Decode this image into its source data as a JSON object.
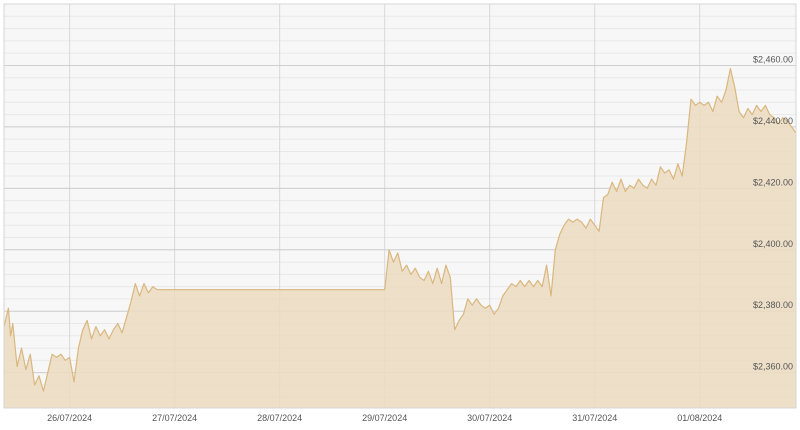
{
  "chart_data": {
    "type": "area",
    "title": "",
    "xlabel": "",
    "ylabel": "",
    "x_ticks": [
      "26/07/2024",
      "27/07/2024",
      "28/07/2024",
      "29/07/2024",
      "30/07/2024",
      "31/07/2024",
      "01/08/2024"
    ],
    "y_ticks": [
      {
        "value": 2360,
        "label": "$2,360.00"
      },
      {
        "value": 2380,
        "label": "$2,380.00"
      },
      {
        "value": 2400,
        "label": "$2,400.00"
      },
      {
        "value": 2420,
        "label": "$2,420.00"
      },
      {
        "value": 2440,
        "label": "$2,440.00"
      },
      {
        "value": 2460,
        "label": "$2,460.00"
      }
    ],
    "xlim": [
      "25/07/2024 09:00",
      "01/08/2024 22:00"
    ],
    "ylim": [
      2348.5,
      2480
    ],
    "y_axis_position": "right",
    "grid": true,
    "series": [
      {
        "color": "#d9b77f",
        "fill": "#ecdcc2",
        "points": [
          [
            "25/07/2024 09:00",
            2375
          ],
          [
            "25/07/2024 10:00",
            2381
          ],
          [
            "25/07/2024 10:30",
            2372
          ],
          [
            "25/07/2024 11:00",
            2376
          ],
          [
            "25/07/2024 12:00",
            2362
          ],
          [
            "25/07/2024 13:00",
            2368
          ],
          [
            "25/07/2024 14:00",
            2361
          ],
          [
            "25/07/2024 15:00",
            2366
          ],
          [
            "25/07/2024 16:00",
            2356
          ],
          [
            "25/07/2024 17:00",
            2359
          ],
          [
            "25/07/2024 18:00",
            2354
          ],
          [
            "25/07/2024 19:00",
            2360
          ],
          [
            "25/07/2024 20:00",
            2366
          ],
          [
            "25/07/2024 21:00",
            2365
          ],
          [
            "25/07/2024 22:00",
            2366
          ],
          [
            "25/07/2024 23:00",
            2364
          ],
          [
            "26/07/2024 00:00",
            2365
          ],
          [
            "26/07/2024 01:00",
            2357
          ],
          [
            "26/07/2024 02:00",
            2368
          ],
          [
            "26/07/2024 03:00",
            2374
          ],
          [
            "26/07/2024 04:00",
            2377
          ],
          [
            "26/07/2024 05:00",
            2371
          ],
          [
            "26/07/2024 06:00",
            2375
          ],
          [
            "26/07/2024 07:00",
            2372
          ],
          [
            "26/07/2024 08:00",
            2374
          ],
          [
            "26/07/2024 09:00",
            2371
          ],
          [
            "26/07/2024 10:00",
            2374
          ],
          [
            "26/07/2024 11:00",
            2376
          ],
          [
            "26/07/2024 12:00",
            2373
          ],
          [
            "26/07/2024 13:00",
            2378
          ],
          [
            "26/07/2024 14:00",
            2383
          ],
          [
            "26/07/2024 15:00",
            2389
          ],
          [
            "26/07/2024 16:00",
            2385
          ],
          [
            "26/07/2024 17:00",
            2389
          ],
          [
            "26/07/2024 18:00",
            2386
          ],
          [
            "26/07/2024 19:00",
            2388
          ],
          [
            "26/07/2024 20:00",
            2387
          ],
          [
            "26/07/2024 21:00",
            2387
          ],
          [
            "29/07/2024 00:00",
            2387
          ],
          [
            "29/07/2024 01:00",
            2400
          ],
          [
            "29/07/2024 02:00",
            2396
          ],
          [
            "29/07/2024 03:00",
            2399
          ],
          [
            "29/07/2024 04:00",
            2393
          ],
          [
            "29/07/2024 05:00",
            2395
          ],
          [
            "29/07/2024 06:00",
            2392
          ],
          [
            "29/07/2024 07:00",
            2394
          ],
          [
            "29/07/2024 08:00",
            2391
          ],
          [
            "29/07/2024 09:00",
            2390
          ],
          [
            "29/07/2024 10:00",
            2393
          ],
          [
            "29/07/2024 11:00",
            2389
          ],
          [
            "29/07/2024 12:00",
            2394
          ],
          [
            "29/07/2024 13:00",
            2389
          ],
          [
            "29/07/2024 14:00",
            2395
          ],
          [
            "29/07/2024 15:00",
            2391
          ],
          [
            "29/07/2024 16:00",
            2374
          ],
          [
            "29/07/2024 17:00",
            2377
          ],
          [
            "29/07/2024 18:00",
            2379
          ],
          [
            "29/07/2024 19:00",
            2384
          ],
          [
            "29/07/2024 20:00",
            2382
          ],
          [
            "29/07/2024 21:00",
            2384
          ],
          [
            "29/07/2024 22:00",
            2382
          ],
          [
            "29/07/2024 23:00",
            2381
          ],
          [
            "30/07/2024 00:00",
            2382
          ],
          [
            "30/07/2024 01:00",
            2379
          ],
          [
            "30/07/2024 02:00",
            2381
          ],
          [
            "30/07/2024 03:00",
            2385
          ],
          [
            "30/07/2024 04:00",
            2387
          ],
          [
            "30/07/2024 05:00",
            2389
          ],
          [
            "30/07/2024 06:00",
            2388
          ],
          [
            "30/07/2024 07:00",
            2390
          ],
          [
            "30/07/2024 08:00",
            2388
          ],
          [
            "30/07/2024 09:00",
            2390
          ],
          [
            "30/07/2024 10:00",
            2388
          ],
          [
            "30/07/2024 11:00",
            2390
          ],
          [
            "30/07/2024 12:00",
            2388
          ],
          [
            "30/07/2024 13:00",
            2395
          ],
          [
            "30/07/2024 14:00",
            2385
          ],
          [
            "30/07/2024 15:00",
            2400
          ],
          [
            "30/07/2024 16:00",
            2405
          ],
          [
            "30/07/2024 17:00",
            2408
          ],
          [
            "30/07/2024 18:00",
            2410
          ],
          [
            "30/07/2024 19:00",
            2409
          ],
          [
            "30/07/2024 20:00",
            2410
          ],
          [
            "30/07/2024 21:00",
            2409
          ],
          [
            "30/07/2024 22:00",
            2407
          ],
          [
            "30/07/2024 23:00",
            2410
          ],
          [
            "31/07/2024 00:00",
            2408
          ],
          [
            "31/07/2024 01:00",
            2406
          ],
          [
            "31/07/2024 02:00",
            2417
          ],
          [
            "31/07/2024 03:00",
            2418
          ],
          [
            "31/07/2024 04:00",
            2422
          ],
          [
            "31/07/2024 05:00",
            2419
          ],
          [
            "31/07/2024 06:00",
            2423
          ],
          [
            "31/07/2024 07:00",
            2419
          ],
          [
            "31/07/2024 08:00",
            2421
          ],
          [
            "31/07/2024 09:00",
            2420
          ],
          [
            "31/07/2024 10:00",
            2423
          ],
          [
            "31/07/2024 11:00",
            2421
          ],
          [
            "31/07/2024 12:00",
            2420
          ],
          [
            "31/07/2024 13:00",
            2423
          ],
          [
            "31/07/2024 14:00",
            2421
          ],
          [
            "31/07/2024 15:00",
            2427
          ],
          [
            "31/07/2024 16:00",
            2425
          ],
          [
            "31/07/2024 17:00",
            2426
          ],
          [
            "31/07/2024 18:00",
            2423
          ],
          [
            "31/07/2024 19:00",
            2428
          ],
          [
            "31/07/2024 20:00",
            2424
          ],
          [
            "31/07/2024 21:00",
            2435
          ],
          [
            "31/07/2024 22:00",
            2449
          ],
          [
            "31/07/2024 23:00",
            2447
          ],
          [
            "01/08/2024 00:00",
            2448
          ],
          [
            "01/08/2024 01:00",
            2447
          ],
          [
            "01/08/2024 02:00",
            2448
          ],
          [
            "01/08/2024 03:00",
            2445
          ],
          [
            "01/08/2024 04:00",
            2450
          ],
          [
            "01/08/2024 05:00",
            2448
          ],
          [
            "01/08/2024 06:00",
            2452
          ],
          [
            "01/08/2024 07:00",
            2459
          ],
          [
            "01/08/2024 08:00",
            2453
          ],
          [
            "01/08/2024 09:00",
            2445
          ],
          [
            "01/08/2024 10:00",
            2443
          ],
          [
            "01/08/2024 11:00",
            2446
          ],
          [
            "01/08/2024 12:00",
            2444
          ],
          [
            "01/08/2024 13:00",
            2447
          ],
          [
            "01/08/2024 14:00",
            2445
          ],
          [
            "01/08/2024 15:00",
            2447
          ],
          [
            "01/08/2024 16:00",
            2444
          ],
          [
            "01/08/2024 17:00",
            2443
          ],
          [
            "01/08/2024 18:00",
            2441
          ],
          [
            "01/08/2024 19:00",
            2443
          ],
          [
            "01/08/2024 20:00",
            2442
          ],
          [
            "01/08/2024 21:00",
            2440
          ],
          [
            "01/08/2024 22:00",
            2438
          ]
        ]
      }
    ]
  }
}
